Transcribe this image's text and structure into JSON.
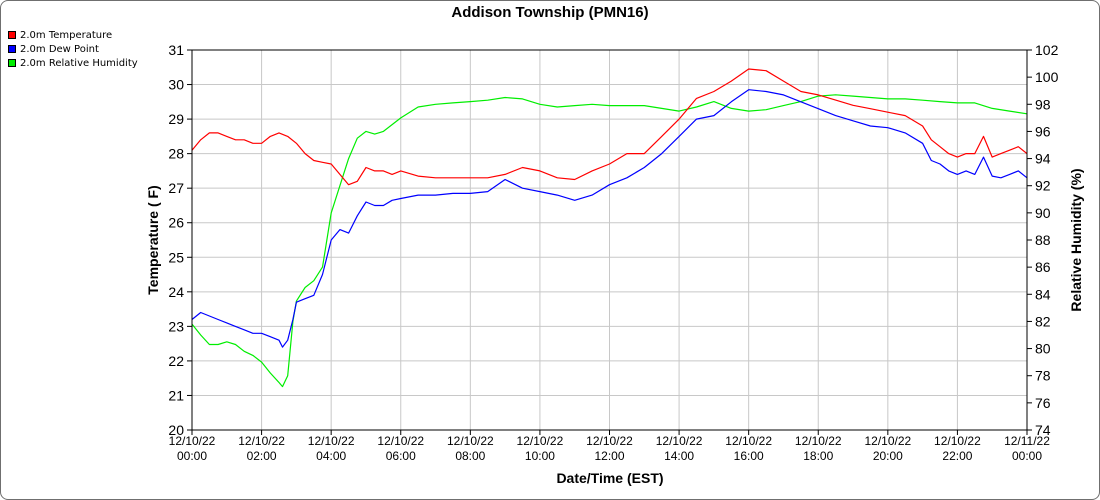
{
  "chart_data": {
    "type": "line",
    "title": "Addison Township (PMN16)",
    "xlabel": "Date/Time (EST)",
    "ylabel": "Temperature ( F)",
    "y2label": "Relative Humidity (%)",
    "ylim": [
      20,
      31
    ],
    "y2lim": [
      74,
      102
    ],
    "yticks": [
      "31",
      "30",
      "29",
      "28",
      "27",
      "26",
      "25",
      "24",
      "23",
      "22",
      "21",
      "20"
    ],
    "y2ticks": [
      "102",
      "100",
      "98",
      "96",
      "94",
      "92",
      "90",
      "88",
      "86",
      "84",
      "82",
      "80",
      "78",
      "76",
      "74"
    ],
    "xlim": [
      0,
      24
    ],
    "xticks": [
      {
        "date": "12/10/22",
        "time": "00:00"
      },
      {
        "date": "12/10/22",
        "time": "02:00"
      },
      {
        "date": "12/10/22",
        "time": "04:00"
      },
      {
        "date": "12/10/22",
        "time": "06:00"
      },
      {
        "date": "12/10/22",
        "time": "08:00"
      },
      {
        "date": "12/10/22",
        "time": "10:00"
      },
      {
        "date": "12/10/22",
        "time": "12:00"
      },
      {
        "date": "12/10/22",
        "time": "14:00"
      },
      {
        "date": "12/10/22",
        "time": "16:00"
      },
      {
        "date": "12/10/22",
        "time": "18:00"
      },
      {
        "date": "12/10/22",
        "time": "20:00"
      },
      {
        "date": "12/10/22",
        "time": "22:00"
      },
      {
        "date": "12/11/22",
        "time": "00:00"
      }
    ],
    "grid": true,
    "legend_position": "top-left",
    "series": [
      {
        "name": "2.0m Temperature",
        "color": "#ff0000",
        "axis": "left",
        "x": [
          0,
          0.25,
          0.5,
          0.75,
          1,
          1.25,
          1.5,
          1.75,
          2,
          2.25,
          2.5,
          2.75,
          3,
          3.25,
          3.5,
          3.75,
          4,
          4.25,
          4.5,
          4.75,
          5,
          5.25,
          5.5,
          5.75,
          6,
          6.5,
          7,
          7.5,
          8,
          8.5,
          9,
          9.5,
          10,
          10.5,
          11,
          11.5,
          12,
          12.5,
          13,
          13.5,
          14,
          14.5,
          15,
          15.5,
          16,
          16.5,
          17,
          17.5,
          18,
          18.5,
          19,
          19.5,
          20,
          20.5,
          21,
          21.25,
          21.5,
          21.75,
          22,
          22.25,
          22.5,
          22.75,
          23,
          23.25,
          23.5,
          23.75,
          24
        ],
        "y": [
          28.1,
          28.4,
          28.6,
          28.6,
          28.5,
          28.4,
          28.4,
          28.3,
          28.3,
          28.5,
          28.6,
          28.5,
          28.3,
          28.0,
          27.8,
          27.75,
          27.7,
          27.4,
          27.1,
          27.2,
          27.6,
          27.5,
          27.5,
          27.4,
          27.5,
          27.35,
          27.3,
          27.3,
          27.3,
          27.3,
          27.4,
          27.6,
          27.5,
          27.3,
          27.25,
          27.5,
          27.7,
          28.0,
          28.0,
          28.5,
          29.0,
          29.6,
          29.8,
          30.1,
          30.45,
          30.4,
          30.1,
          29.8,
          29.7,
          29.55,
          29.4,
          29.3,
          29.2,
          29.1,
          28.8,
          28.4,
          28.2,
          28.0,
          27.9,
          28.0,
          28.0,
          28.5,
          27.9,
          28.0,
          28.1,
          28.2,
          28.0
        ]
      },
      {
        "name": "2.0m Dew Point",
        "color": "#0000ff",
        "axis": "left",
        "x": [
          0,
          0.25,
          0.5,
          0.75,
          1,
          1.25,
          1.5,
          1.75,
          2,
          2.25,
          2.5,
          2.6,
          2.75,
          2.9,
          3,
          3.25,
          3.5,
          3.75,
          4,
          4.25,
          4.5,
          4.75,
          5,
          5.25,
          5.5,
          5.75,
          6,
          6.5,
          7,
          7.5,
          8,
          8.5,
          9,
          9.5,
          10,
          10.5,
          11,
          11.5,
          12,
          12.5,
          13,
          13.5,
          14,
          14.5,
          15,
          15.5,
          16,
          16.5,
          17,
          17.5,
          18,
          18.5,
          19,
          19.5,
          20,
          20.5,
          21,
          21.25,
          21.5,
          21.75,
          22,
          22.25,
          22.5,
          22.75,
          23,
          23.25,
          23.5,
          23.75,
          24
        ],
        "y": [
          23.2,
          23.4,
          23.3,
          23.2,
          23.1,
          23.0,
          22.9,
          22.8,
          22.8,
          22.7,
          22.6,
          22.4,
          22.6,
          23.2,
          23.7,
          23.8,
          23.9,
          24.5,
          25.5,
          25.8,
          25.7,
          26.2,
          26.6,
          26.5,
          26.5,
          26.65,
          26.7,
          26.8,
          26.8,
          26.85,
          26.85,
          26.9,
          27.25,
          27.0,
          26.9,
          26.8,
          26.65,
          26.8,
          27.1,
          27.3,
          27.6,
          28.0,
          28.5,
          29.0,
          29.1,
          29.5,
          29.85,
          29.8,
          29.7,
          29.5,
          29.3,
          29.1,
          28.95,
          28.8,
          28.75,
          28.6,
          28.3,
          27.8,
          27.7,
          27.5,
          27.4,
          27.5,
          27.4,
          27.9,
          27.35,
          27.3,
          27.4,
          27.5,
          27.3
        ]
      },
      {
        "name": "2.0m Relative Humidity",
        "color": "#00ee00",
        "axis": "right",
        "x": [
          0,
          0.25,
          0.5,
          0.75,
          1,
          1.25,
          1.5,
          1.75,
          2,
          2.25,
          2.5,
          2.6,
          2.75,
          2.9,
          3,
          3.25,
          3.5,
          3.75,
          4,
          4.25,
          4.5,
          4.75,
          5,
          5.25,
          5.5,
          5.75,
          6,
          6.5,
          7,
          7.5,
          8,
          8.5,
          9,
          9.5,
          10,
          10.5,
          11,
          11.5,
          12,
          12.5,
          13,
          13.5,
          14,
          14.5,
          15,
          15.5,
          16,
          16.5,
          17,
          17.5,
          18,
          18.5,
          19,
          19.5,
          20,
          20.5,
          21,
          21.5,
          22,
          22.5,
          23,
          23.5,
          24
        ],
        "y": [
          81.8,
          81.0,
          80.3,
          80.3,
          80.5,
          80.3,
          79.8,
          79.5,
          79.0,
          78.2,
          77.5,
          77.2,
          78.0,
          82.0,
          83.5,
          84.5,
          85.0,
          86.0,
          90.0,
          92.0,
          94.0,
          95.5,
          96.0,
          95.8,
          96.0,
          96.5,
          97.0,
          97.8,
          98.0,
          98.1,
          98.2,
          98.3,
          98.5,
          98.4,
          98.0,
          97.8,
          97.9,
          98.0,
          97.9,
          97.9,
          97.9,
          97.7,
          97.5,
          97.8,
          98.2,
          97.7,
          97.5,
          97.6,
          97.9,
          98.2,
          98.6,
          98.7,
          98.6,
          98.5,
          98.4,
          98.4,
          98.3,
          98.2,
          98.1,
          98.1,
          97.7,
          97.5,
          97.3
        ]
      }
    ]
  }
}
